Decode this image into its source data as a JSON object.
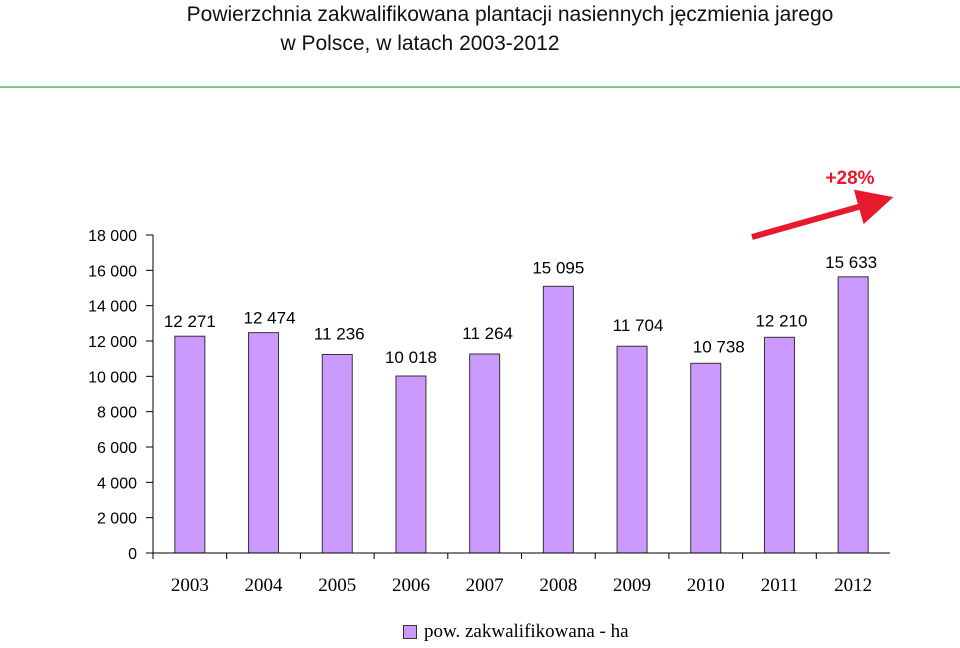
{
  "title_line1": "Powierzchnia zakwalifikowana plantacji nasiennych jęczmienia jarego",
  "title_line2": "w Polsce, w latach 2003-2012",
  "colors": {
    "bar": "#cc99ff",
    "accent": "#e8192c",
    "rule": "#7fc97f"
  },
  "chart_data": {
    "type": "bar",
    "categories": [
      "2003",
      "2004",
      "2005",
      "2006",
      "2007",
      "2008",
      "2009",
      "2010",
      "2011",
      "2012"
    ],
    "series": [
      {
        "name": "pow. zakwalifikowana - ha",
        "values": [
          12271,
          12474,
          11236,
          10018,
          11264,
          15095,
          11704,
          10738,
          12210,
          15633
        ]
      }
    ],
    "data_labels": [
      "12 271",
      "12 474",
      "11 236",
      "10 018",
      "11 264",
      "15 095",
      "11 704",
      "10 738",
      "12 210",
      "15 633"
    ],
    "y_ticks": [
      "0",
      "2 000",
      "4 000",
      "6 000",
      "8 000",
      "10 000",
      "12 000",
      "14 000",
      "16 000",
      "18 000"
    ],
    "ylim": [
      0,
      18000
    ],
    "legend_position": "bottom",
    "annotation": "+28%"
  }
}
